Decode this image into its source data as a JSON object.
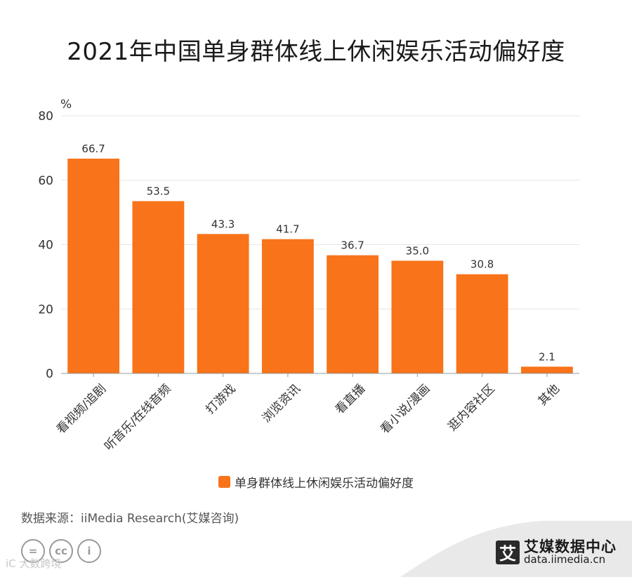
{
  "title": "2021年中国单身群体线上休闲娱乐活动偏好度",
  "source": "数据来源：iiMedia Research(艾媒咨询)",
  "license_icons": [
    "=",
    "cc",
    "i"
  ],
  "watermark": "iC 大数跨境",
  "brand": {
    "logo_char": "艾",
    "name": "艾媒数据中心",
    "url": "data.iimedia.cn"
  },
  "colors": {
    "bar": "#F87319",
    "grid": "#E6E6E6",
    "axis": "#999999",
    "corner_band": "#E9E9E9"
  },
  "chart_data": {
    "type": "bar",
    "title": "2021年中国单身群体线上休闲娱乐活动偏好度",
    "ylabel": "%",
    "xlabel": "",
    "ylim": [
      0,
      80
    ],
    "yticks": [
      0,
      20,
      40,
      60,
      80
    ],
    "grid": true,
    "legend_position": "bottom",
    "categories": [
      "看视频/追剧",
      "听音乐/在线音频",
      "打游戏",
      "浏览资讯",
      "看直播",
      "看小说/漫画",
      "逛内容社区",
      "其他"
    ],
    "series": [
      {
        "name": "单身群体线上休闲娱乐活动偏好度",
        "values": [
          66.7,
          53.5,
          43.3,
          41.7,
          36.7,
          35.0,
          30.8,
          2.1
        ],
        "labels": [
          "66.7",
          "53.5",
          "43.3",
          "41.7",
          "36.7",
          "35.0",
          "30.8",
          "2.1"
        ]
      }
    ]
  }
}
